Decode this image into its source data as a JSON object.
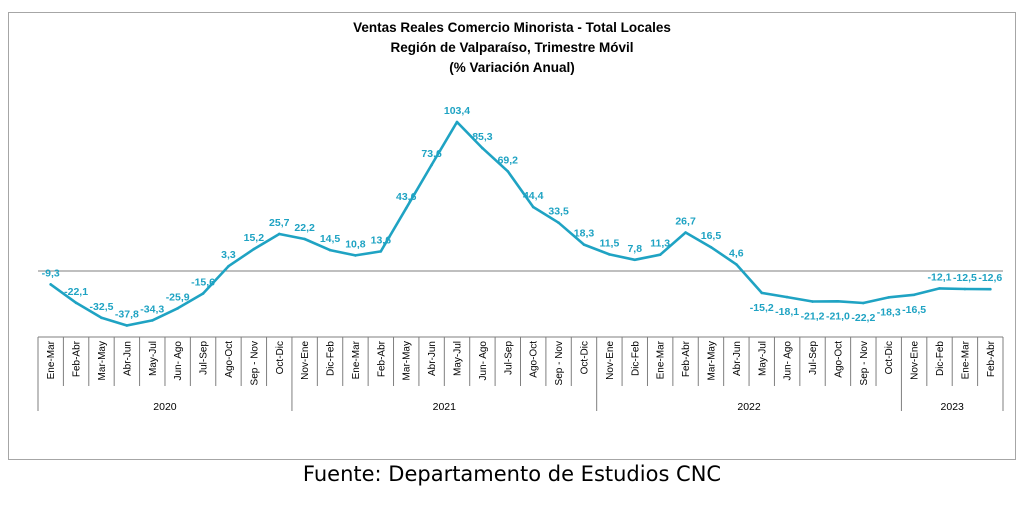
{
  "chart_data": {
    "type": "line",
    "title": "Ventas Reales Comercio Minorista - Total Locales",
    "subtitle": "Región de Valparaíso, Trimestre Móvil",
    "subtitle2": "(% Variación Anual)",
    "x": [
      "Ene-Mar",
      "Feb-Abr",
      "Mar-May",
      "Abr-Jun",
      "May-Jul",
      "Jun- Ago",
      "Jul-Sep",
      "Ago-Oct",
      "Sep - Nov",
      "Oct-Dic",
      "Nov-Ene",
      "Dic-Feb",
      "Ene-Mar",
      "Feb-Abr",
      "Mar-May",
      "Abr-Jun",
      "May-Jul",
      "Jun- Ago",
      "Jul-Sep",
      "Ago-Oct",
      "Sep - Nov",
      "Oct-Dic",
      "Nov-Ene",
      "Dic-Feb",
      "Ene-Mar",
      "Feb-Abr",
      "Mar-May",
      "Abr-Jun",
      "May-Jul",
      "Jun- Ago",
      "Jul-Sep",
      "Ago-Oct",
      "Sep - Nov",
      "Oct-Dic",
      "Nov-Ene",
      "Dic-Feb",
      "Ene-Mar",
      "Feb-Abr"
    ],
    "series": [
      {
        "values": [
          -9.3,
          -22.1,
          -32.5,
          -37.8,
          -34.3,
          -25.9,
          -15.6,
          3.3,
          15.2,
          25.7,
          22.2,
          14.5,
          10.8,
          13.6,
          43.6,
          73.6,
          103.4,
          85.3,
          69.2,
          44.4,
          33.5,
          18.3,
          11.5,
          7.8,
          11.3,
          26.7,
          16.5,
          4.6,
          -15.2,
          -18.1,
          -21.2,
          -21.0,
          -22.2,
          -18.3,
          -16.5,
          -12.1,
          -12.5,
          -12.6
        ],
        "labels": [
          "-9,3",
          "-22,1",
          "-32,5",
          "-37,8",
          "-34,3",
          "-25,9",
          "-15,6",
          "3,3",
          "15,2",
          "25,7",
          "22,2",
          "14,5",
          "10,8",
          "13,6",
          "43,6",
          "73,6",
          "103,4",
          "85,3",
          "69,2",
          "44,4",
          "33,5",
          "18,3",
          "11,5",
          "7,8",
          "11,3",
          "26,7",
          "16,5",
          "4,6",
          "-15,2",
          "-18,1",
          "-21,2",
          "-21,0",
          "-22,2",
          "-18,3",
          "-16,5",
          "-12,1",
          "-12,5",
          "-12,6"
        ],
        "color": "#1fa3c3"
      }
    ],
    "groups": [
      {
        "label": "2020",
        "start": 0,
        "end": 9
      },
      {
        "label": "2021",
        "start": 10,
        "end": 21
      },
      {
        "label": "2022",
        "start": 22,
        "end": 33
      },
      {
        "label": "2023",
        "start": 34,
        "end": 37
      }
    ],
    "ylim": [
      -45,
      115
    ],
    "grid": false,
    "legend": "none",
    "axis_color": "#7f7f7f",
    "label_color": "#1fa3c3"
  },
  "source": "Fuente:  Departamento  de Estudios CNC"
}
